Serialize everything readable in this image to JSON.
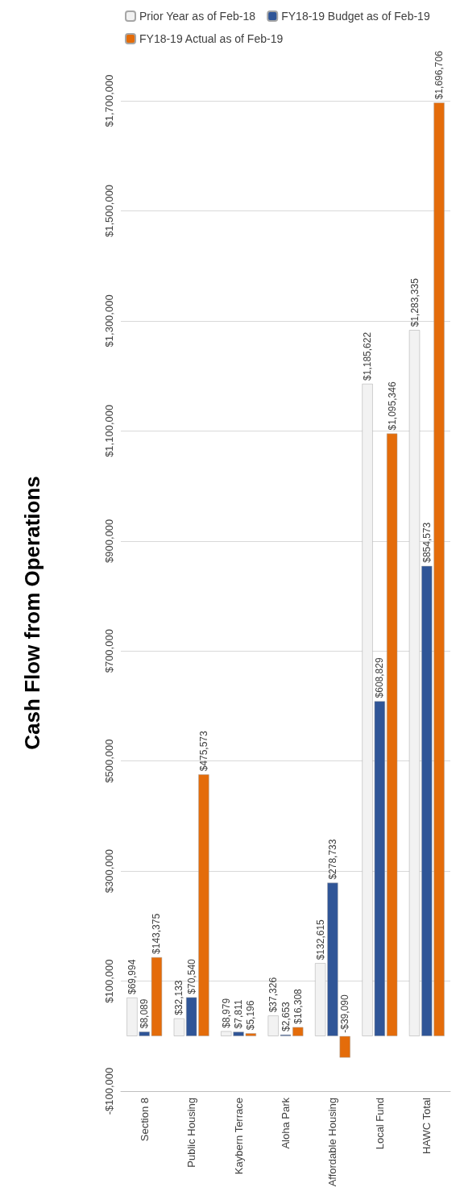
{
  "chart_data": {
    "type": "bar",
    "title": "Cash Flow from Operations",
    "categories": [
      "Section 8",
      "Public Housing",
      "Kaybern Terrace",
      "Aloha Park",
      "Affordable Housing",
      "Local Fund",
      "HAWC Total"
    ],
    "series": [
      {
        "name": "Prior Year as of Feb-18",
        "color": "#f2f2f2",
        "values": [
          69994,
          32133,
          8979,
          37326,
          132615,
          1185622,
          1283335
        ],
        "value_labels": [
          "$69,994",
          "$32,133",
          "$8,979",
          "$37,326",
          "$132,615",
          "$1,185,622",
          "$1,283,335"
        ]
      },
      {
        "name": "FY18-19 Budget as of Feb-19",
        "color": "#2f5597",
        "values": [
          8089,
          70540,
          7811,
          2653,
          278733,
          608829,
          854573
        ],
        "value_labels": [
          "$8,089",
          "$70,540",
          "$7,811",
          "$2,653",
          "$278,733",
          "$608,829",
          "$854,573"
        ]
      },
      {
        "name": "FY18-19 Actual as of Feb-19",
        "color": "#e46c0a",
        "values": [
          143375,
          475573,
          5196,
          16308,
          -39090,
          1095346,
          1696706
        ],
        "value_labels": [
          "$143,375",
          "$475,573",
          "$5,196",
          "$16,308",
          "-$39,090",
          "$1,095,346",
          "$1,696,706"
        ]
      }
    ],
    "ylim": [
      -100000,
      1700000
    ],
    "yticks": [
      {
        "value": -100000,
        "label": "-$100,000"
      },
      {
        "value": 100000,
        "label": "$100,000"
      },
      {
        "value": 300000,
        "label": "$300,000"
      },
      {
        "value": 500000,
        "label": "$500,000"
      },
      {
        "value": 700000,
        "label": "$700,000"
      },
      {
        "value": 900000,
        "label": "$900,000"
      },
      {
        "value": 1100000,
        "label": "$1,100,000"
      },
      {
        "value": 1300000,
        "label": "$1,300,000"
      },
      {
        "value": 1500000,
        "label": "$1,500,000"
      },
      {
        "value": 1700000,
        "label": "$1,700,000"
      }
    ],
    "grid": "y",
    "legend": "top"
  }
}
